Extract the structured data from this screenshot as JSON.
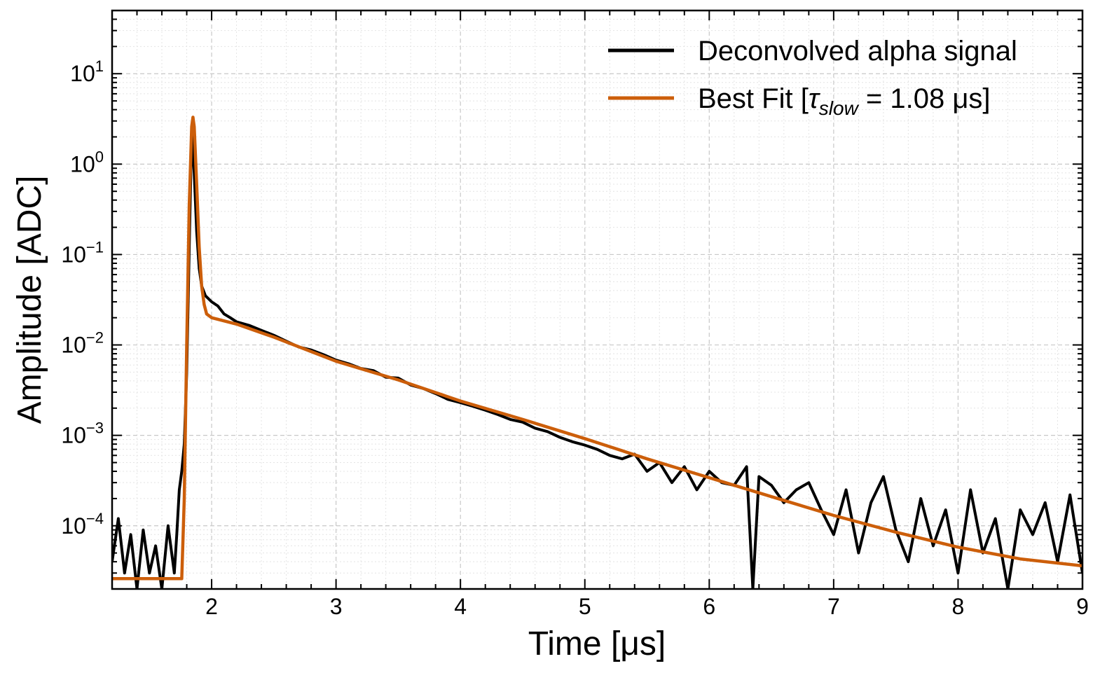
{
  "chart_data": {
    "type": "line",
    "title": "",
    "xlabel": "Time [μs]",
    "ylabel": "Amplitude [ADC]",
    "xscale": "linear",
    "yscale": "log",
    "xlim": [
      1.2,
      9.0
    ],
    "ylim": [
      2e-05,
      50
    ],
    "grid": true,
    "legend_position": "top-right",
    "x_ticks": [
      {
        "value": 2,
        "label": "2"
      },
      {
        "value": 3,
        "label": "3"
      },
      {
        "value": 4,
        "label": "4"
      },
      {
        "value": 5,
        "label": "5"
      },
      {
        "value": 6,
        "label": "6"
      },
      {
        "value": 7,
        "label": "7"
      },
      {
        "value": 8,
        "label": "8"
      },
      {
        "value": 9,
        "label": "9"
      }
    ],
    "y_ticks": [
      {
        "value": 10,
        "base": "10",
        "exp": "1"
      },
      {
        "value": 1,
        "base": "10",
        "exp": "0"
      },
      {
        "value": 0.1,
        "base": "10",
        "exp": "−1"
      },
      {
        "value": 0.01,
        "base": "10",
        "exp": "−2"
      },
      {
        "value": 0.001,
        "base": "10",
        "exp": "−3"
      },
      {
        "value": 0.0001,
        "base": "10",
        "exp": "−4"
      }
    ],
    "series": [
      {
        "name": "Deconvolved alpha signal",
        "color": "#000000",
        "x": [
          1.2,
          1.25,
          1.3,
          1.35,
          1.4,
          1.45,
          1.5,
          1.55,
          1.6,
          1.65,
          1.7,
          1.72,
          1.74,
          1.76,
          1.78,
          1.8,
          1.82,
          1.84,
          1.86,
          1.88,
          1.9,
          1.92,
          1.95,
          2.0,
          2.05,
          2.1,
          2.15,
          2.2,
          2.3,
          2.4,
          2.5,
          2.6,
          2.7,
          2.8,
          2.9,
          3.0,
          3.1,
          3.2,
          3.3,
          3.4,
          3.5,
          3.6,
          3.7,
          3.8,
          3.9,
          4.0,
          4.1,
          4.2,
          4.3,
          4.4,
          4.5,
          4.6,
          4.7,
          4.8,
          4.9,
          5.0,
          5.1,
          5.2,
          5.3,
          5.4,
          5.5,
          5.6,
          5.7,
          5.8,
          5.9,
          6.0,
          6.1,
          6.2,
          6.3,
          6.35,
          6.4,
          6.5,
          6.6,
          6.7,
          6.8,
          6.9,
          7.0,
          7.1,
          7.2,
          7.3,
          7.4,
          7.5,
          7.6,
          7.7,
          7.8,
          7.9,
          8.0,
          8.1,
          8.2,
          8.3,
          8.4,
          8.5,
          8.6,
          8.7,
          8.8,
          8.9,
          9.0
        ],
        "y": [
          4e-05,
          0.00012,
          3e-05,
          8e-05,
          2e-05,
          9e-05,
          3e-05,
          6e-05,
          2e-05,
          0.0001,
          3e-05,
          8e-05,
          0.00025,
          0.0004,
          0.0008,
          0.005,
          0.12,
          2.3,
          0.8,
          0.18,
          0.07,
          0.045,
          0.035,
          0.03,
          0.027,
          0.022,
          0.02,
          0.018,
          0.0165,
          0.0145,
          0.0128,
          0.011,
          0.0095,
          0.0088,
          0.0078,
          0.0068,
          0.0062,
          0.0055,
          0.0052,
          0.0044,
          0.0043,
          0.0036,
          0.0033,
          0.0029,
          0.0025,
          0.0023,
          0.0021,
          0.0019,
          0.0017,
          0.0015,
          0.0014,
          0.0012,
          0.0011,
          0.00095,
          0.00085,
          0.00078,
          0.0007,
          0.0006,
          0.00055,
          0.00062,
          0.0004,
          0.0005,
          0.0003,
          0.00045,
          0.00025,
          0.0004,
          0.0003,
          0.00028,
          0.00045,
          2e-05,
          0.00035,
          0.00028,
          0.00018,
          0.00025,
          0.0003,
          0.00015,
          8e-05,
          0.00025,
          5e-05,
          0.00018,
          0.00035,
          9e-05,
          4e-05,
          0.0002,
          6e-05,
          0.00015,
          3e-05,
          0.00025,
          5e-05,
          0.00012,
          2e-05,
          0.00015,
          8e-05,
          0.00018,
          4e-05,
          0.00022,
          3e-05
        ]
      },
      {
        "name": "Best Fit [τslow = 1.08 μs]",
        "color": "#CC5E0A",
        "x": [
          1.2,
          1.5,
          1.76,
          1.78,
          1.8,
          1.82,
          1.84,
          1.85,
          1.86,
          1.88,
          1.9,
          1.92,
          1.94,
          1.96,
          2.0,
          2.2,
          2.5,
          3.0,
          3.5,
          4.0,
          4.5,
          5.0,
          5.5,
          6.0,
          6.5,
          7.0,
          7.5,
          8.0,
          8.5,
          9.0
        ],
        "y": [
          2.6e-05,
          2.6e-05,
          2.6e-05,
          0.0002,
          0.01,
          0.35,
          2.6,
          3.3,
          2.6,
          0.6,
          0.12,
          0.045,
          0.028,
          0.022,
          0.02,
          0.017,
          0.0122,
          0.0066,
          0.0041,
          0.0024,
          0.0015,
          0.00092,
          0.00055,
          0.00034,
          0.00021,
          0.00013,
          8.5e-05,
          5.8e-05,
          4.3e-05,
          3.6e-05
        ]
      }
    ],
    "legend": {
      "entries": [
        {
          "label": "Deconvolved alpha signal",
          "color": "#000000"
        },
        {
          "label_prefix": "Best Fit [",
          "tau": "τ",
          "subscript": "slow",
          "label_suffix": " = 1.08 μs]",
          "color": "#CC5E0A"
        }
      ]
    }
  }
}
